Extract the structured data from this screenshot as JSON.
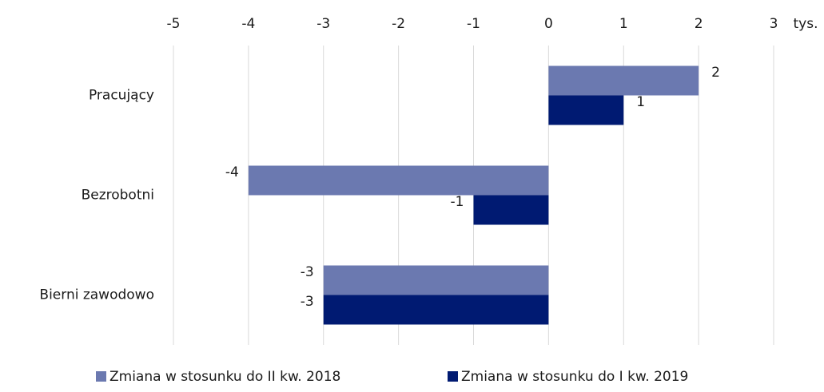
{
  "chart_data": {
    "type": "hbar",
    "xlabel": "tys.",
    "categories": [
      "Pracujący",
      "Bezrobotni",
      "Bierni zawodowo"
    ],
    "series": [
      {
        "name": "Zmiana w stosunku do II kw. 2018",
        "color": "#6b79b0",
        "values": [
          2,
          -4,
          -3
        ]
      },
      {
        "name": "Zmiana w stosunku do I kw. 2019",
        "color": "#001a72",
        "values": [
          1,
          -1,
          -3
        ]
      }
    ],
    "xlim": [
      -5,
      3
    ],
    "xticks": [
      -5,
      -4,
      -3,
      -2,
      -1,
      0,
      1,
      2,
      3
    ],
    "grid": true,
    "legend": "bottom"
  }
}
